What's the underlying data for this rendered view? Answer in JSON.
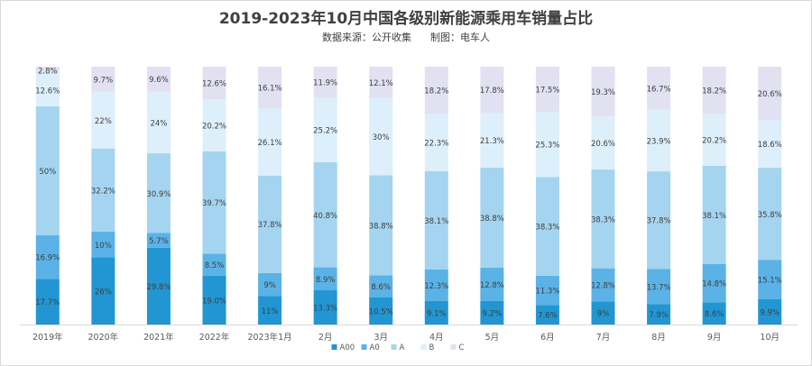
{
  "chart_data": {
    "type": "bar",
    "stacked": "percent",
    "title": "2019-2023年10月中国各级别新能源乘用车销量占比",
    "subtitle": "数据来源：公开收集      制图：电车人",
    "categories": [
      "2019年",
      "2020年",
      "2021年",
      "2022年",
      "2023年1月",
      "2月",
      "3月",
      "4月",
      "5月",
      "6月",
      "7月",
      "8月",
      "9月",
      "10月"
    ],
    "series": [
      {
        "name": "A00",
        "color": "#2196D3",
        "values": [
          17.7,
          26,
          29.8,
          19.0,
          11,
          13.3,
          10.5,
          9.1,
          9.2,
          7.6,
          9,
          7.9,
          8.6,
          9.9
        ],
        "labels": [
          "17.7%",
          "26%",
          "29.8%",
          "19.0%",
          "11%",
          "13.3%",
          "10.5%",
          "9.1%",
          "9.2%",
          "7.6%",
          "9%",
          "7.9%",
          "8.6%",
          "9.9%"
        ]
      },
      {
        "name": "A0",
        "color": "#5AB2E6",
        "values": [
          16.9,
          10,
          5.7,
          8.5,
          9,
          8.9,
          8.6,
          12.3,
          12.8,
          11.3,
          12.8,
          13.7,
          14.8,
          15.1
        ],
        "labels": [
          "16.9%",
          "10%",
          "5.7%",
          "8.5%",
          "9%",
          "8.9%",
          "8.6%",
          "12.3%",
          "12.8%",
          "11.3%",
          "12.8%",
          "13.7%",
          "14.8%",
          "15.1%"
        ]
      },
      {
        "name": "A",
        "color": "#A4D4EF",
        "values": [
          50,
          32.2,
          30.9,
          39.7,
          37.8,
          40.8,
          38.8,
          38.1,
          38.8,
          38.3,
          38.3,
          37.8,
          38.1,
          35.8
        ],
        "labels": [
          "50%",
          "32.2%",
          "30.9%",
          "39.7%",
          "37.8%",
          "40.8%",
          "38.8%",
          "38.1%",
          "38.8%",
          "38.3%",
          "38.3%",
          "37.8%",
          "38.1%",
          "35.8%"
        ]
      },
      {
        "name": "B",
        "color": "#DDEFFA",
        "values": [
          12.6,
          22,
          24,
          20.2,
          26.1,
          25.2,
          30,
          22.3,
          21.3,
          25.3,
          20.6,
          23.9,
          20.2,
          18.6
        ],
        "labels": [
          "12.6%",
          "22%",
          "24%",
          "20.2%",
          "26.1%",
          "25.2%",
          "30%",
          "22.3%",
          "21.3%",
          "25.3%",
          "20.6%",
          "23.9%",
          "20.2%",
          "18.6%"
        ]
      },
      {
        "name": "C",
        "color": "#E1E1F2",
        "values": [
          2.8,
          9.7,
          9.6,
          12.6,
          16.1,
          11.9,
          12.1,
          18.2,
          17.8,
          17.5,
          19.3,
          16.7,
          18.2,
          20.6
        ],
        "labels": [
          "2.8%",
          "9.7%",
          "9.6%",
          "12.6%",
          "16.1%",
          "11.9%",
          "12.1%",
          "18.2%",
          "17.8%",
          "17.5%",
          "19.3%",
          "16.7%",
          "18.2%",
          "20.6%"
        ]
      }
    ],
    "ylim": [
      0,
      100
    ],
    "grid": false,
    "legend": "bottom-center"
  }
}
